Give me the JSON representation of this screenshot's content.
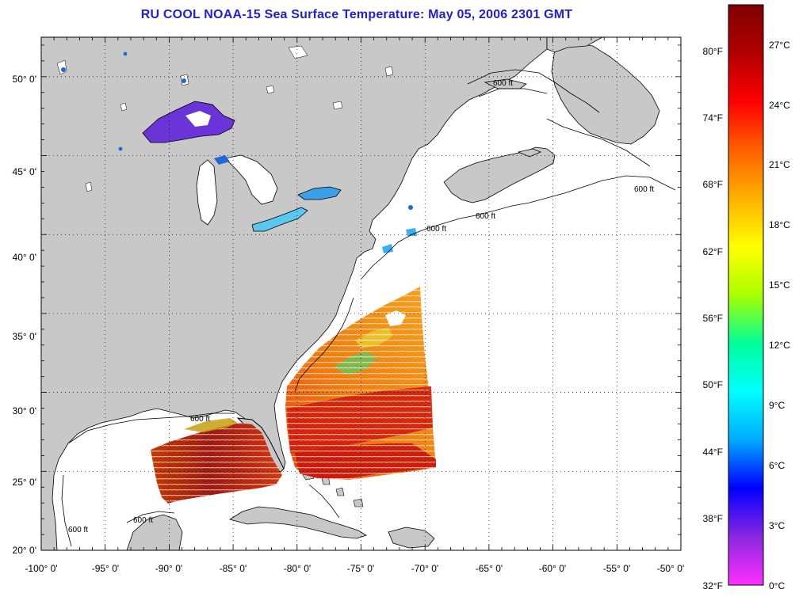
{
  "title": "RU COOL  NOAA-15  Sea Surface Temperature:  May 05, 2006 2301 GMT",
  "map": {
    "projection": "equirectangular",
    "lon_range": [
      -100,
      -50
    ],
    "lat_range": [
      20,
      52.5
    ],
    "grid": "dotted",
    "x_tick_labels": [
      "-100° 0'",
      "-95° 0'",
      "-90° 0'",
      "-85° 0'",
      "-80° 0'",
      "-75° 0'",
      "-70° 0'",
      "-65° 0'",
      "-60° 0'",
      "-55° 0'",
      "-50° 0'"
    ],
    "y_tick_labels": [
      "50° 0'",
      "45° 0'",
      "40° 0'",
      "35° 0'",
      "30° 0'",
      "25° 0'",
      "20° 0'"
    ],
    "contour_label": "600 ft",
    "colors": {
      "land": "#c8c8c8",
      "ocean": "#ffffff",
      "coast": "#000000",
      "title": "#1f1fd8"
    }
  },
  "colorbar": {
    "fahrenheit_labels": [
      "80°F",
      "74°F",
      "68°F",
      "62°F",
      "56°F",
      "50°F",
      "44°F",
      "38°F",
      "32°F"
    ],
    "celsius_labels": [
      "27°C",
      "24°C",
      "21°C",
      "18°C",
      "15°C",
      "12°C",
      "9°C",
      "6°C",
      "3°C",
      "0°C"
    ],
    "range_celsius": [
      0,
      29
    ],
    "stops": [
      "#ff30ff",
      "#8a28e0",
      "#0000ff",
      "#00aaff",
      "#00ffff",
      "#00ff9a",
      "#aaff00",
      "#ffff00",
      "#ffb000",
      "#ff6000",
      "#ff0000",
      "#b00000",
      "#800000"
    ]
  }
}
